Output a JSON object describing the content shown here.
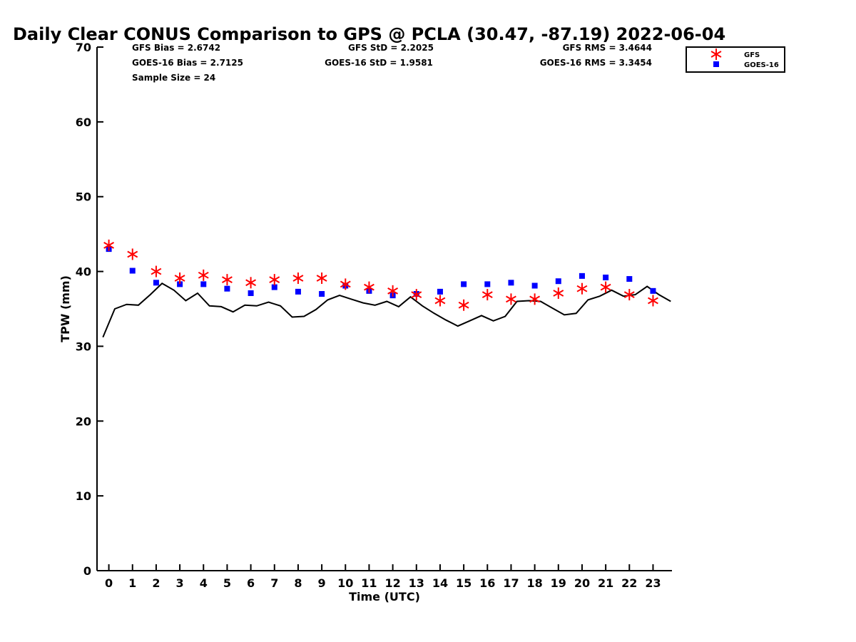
{
  "chart_data": {
    "type": "scatter",
    "title": "Daily Clear CONUS Comparison to GPS @ PCLA (30.47, -87.19) 2022-06-04",
    "xlabel": "Time (UTC)",
    "ylabel": "TPW (mm)",
    "xlim": [
      -0.5,
      23.8
    ],
    "ylim": [
      0,
      70
    ],
    "xticks": [
      0,
      1,
      2,
      3,
      4,
      5,
      6,
      7,
      8,
      9,
      10,
      11,
      12,
      13,
      14,
      15,
      16,
      17,
      18,
      19,
      20,
      21,
      22,
      23
    ],
    "yticks": [
      0,
      10,
      20,
      30,
      40,
      50,
      60,
      70
    ],
    "grid": false,
    "legend_position": "top-right",
    "stats": [
      {
        "text": "GFS Bias = 2.6742"
      },
      {
        "text": "GFS StD = 2.2025"
      },
      {
        "text": "GFS RMS = 3.4644"
      },
      {
        "text": "GOES-16 Bias = 2.7125"
      },
      {
        "text": "GOES-16 StD = 1.9581"
      },
      {
        "text": "GOES-16 RMS = 3.3454"
      },
      {
        "text": "Sample Size = 24"
      }
    ],
    "series": [
      {
        "name": "GFS",
        "marker": "asterisk",
        "color": "#ff0000",
        "x": [
          0,
          1,
          2,
          3,
          4,
          5,
          6,
          7,
          8,
          9,
          10,
          11,
          12,
          13,
          14,
          15,
          16,
          17,
          18,
          19,
          20,
          21,
          22,
          23
        ],
        "values": [
          43.5,
          42.3,
          40.0,
          39.1,
          39.5,
          38.9,
          38.5,
          38.9,
          39.1,
          39.1,
          38.3,
          37.9,
          37.4,
          36.9,
          36.1,
          35.5,
          36.9,
          36.3,
          36.3,
          37.1,
          37.7,
          37.9,
          36.9,
          36.1
        ]
      },
      {
        "name": "GOES-16",
        "marker": "square",
        "color": "#0000ff",
        "x": [
          0,
          1,
          2,
          3,
          4,
          5,
          6,
          7,
          8,
          9,
          10,
          11,
          12,
          13,
          14,
          15,
          16,
          17,
          18,
          19,
          20,
          21,
          22,
          23
        ],
        "values": [
          43.0,
          40.1,
          38.5,
          38.3,
          38.3,
          37.7,
          37.1,
          37.9,
          37.3,
          37.0,
          38.1,
          37.4,
          36.8,
          37.0,
          37.3,
          38.3,
          38.3,
          38.5,
          38.1,
          38.7,
          39.4,
          39.2,
          39.0,
          37.4
        ]
      },
      {
        "marker": "line",
        "color": "#000000",
        "x": [
          -0.25,
          0.25,
          0.75,
          1.25,
          1.75,
          2.25,
          2.75,
          3.25,
          3.75,
          4.25,
          4.75,
          5.25,
          5.75,
          6.25,
          6.75,
          7.25,
          7.75,
          8.25,
          8.75,
          9.25,
          9.75,
          10.25,
          10.75,
          11.25,
          11.75,
          12.25,
          12.75,
          13.25,
          13.75,
          14.25,
          14.75,
          15.25,
          15.75,
          16.25,
          16.75,
          17.25,
          17.75,
          18.25,
          18.75,
          19.25,
          19.75,
          20.25,
          20.75,
          21.25,
          21.75,
          22.25,
          22.75,
          23.25,
          23.75
        ],
        "values": [
          31.2,
          35.0,
          35.6,
          35.5,
          36.9,
          38.4,
          37.5,
          36.1,
          37.1,
          35.4,
          35.3,
          34.6,
          35.5,
          35.4,
          35.9,
          35.4,
          33.9,
          34.0,
          34.9,
          36.2,
          36.8,
          36.3,
          35.8,
          35.5,
          36.0,
          35.3,
          36.6,
          35.4,
          34.4,
          33.5,
          32.7,
          33.4,
          34.1,
          33.4,
          34.0,
          36.0,
          36.1,
          36.0,
          35.1,
          34.2,
          34.4,
          36.2,
          36.7,
          37.5,
          36.7,
          36.9,
          38.0,
          36.9,
          36.0
        ]
      }
    ]
  }
}
